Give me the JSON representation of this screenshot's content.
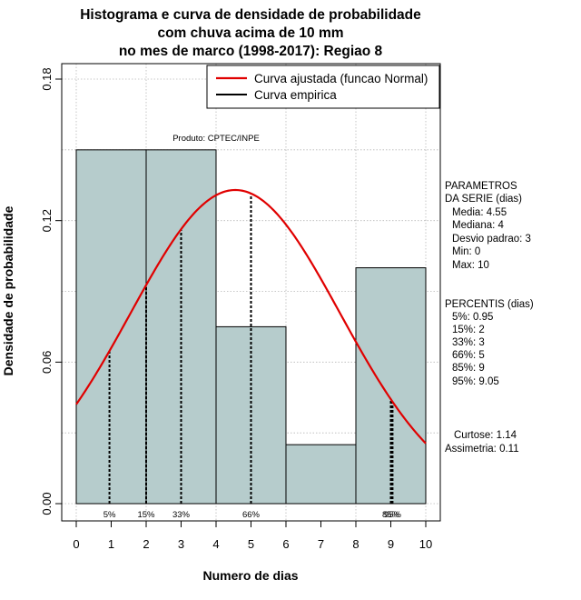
{
  "chart_data": {
    "type": "bar",
    "title_lines": [
      "Histograma e curva de densidade de probabilidade",
      "com chuva acima de 10 mm",
      "no mes de marco (1998-2017): Regiao 8"
    ],
    "xlabel": "Numero de dias",
    "ylabel": "Densidade de probabilidade",
    "xlim": [
      0,
      10
    ],
    "ylim": [
      0,
      0.18
    ],
    "x_ticks": [
      0,
      1,
      2,
      3,
      4,
      5,
      6,
      7,
      8,
      9,
      10
    ],
    "y_ticks": [
      0.0,
      0.06,
      0.12,
      0.18
    ],
    "y_tick_labels": [
      "0.00",
      "0.06",
      "0.12",
      "0.18"
    ],
    "bins": [
      {
        "start": 0,
        "end": 2,
        "density": 0.15
      },
      {
        "start": 2,
        "end": 4,
        "density": 0.15
      },
      {
        "start": 4,
        "end": 6,
        "density": 0.075
      },
      {
        "start": 6,
        "end": 8,
        "density": 0.025
      },
      {
        "start": 8,
        "end": 10,
        "density": 0.1
      }
    ],
    "bar_color": "#b6cccc",
    "curve": {
      "label": "Curva ajustada (funcao Normal)",
      "mean": 4.55,
      "sd": 3,
      "color": "#e00000"
    },
    "empirical_label": "Curva empirica",
    "credit": "Produto: CPTEC/INPE",
    "percentile_marks": [
      {
        "label": "5%",
        "x": 0.95
      },
      {
        "label": "15%",
        "x": 2
      },
      {
        "label": "33%",
        "x": 3
      },
      {
        "label": "66%",
        "x": 5
      },
      {
        "label": "85%",
        "x": 9
      },
      {
        "label": "95%",
        "x": 9.05
      }
    ],
    "params_title": [
      "PARAMETROS",
      "DA SERIE (dias)"
    ],
    "params": [
      "Media: 4.55",
      "Mediana: 4",
      "Desvio padrao: 3",
      "Min: 0",
      "Max: 10"
    ],
    "percentis_title": "PERCENTIS (dias)",
    "percentis": [
      "5%: 0.95",
      "15%: 2",
      "33%: 3",
      "66%: 5",
      "85%: 9",
      "95%: 9.05"
    ],
    "stats": [
      "Curtose: 1.14",
      "Assimetria: 0.11"
    ]
  }
}
